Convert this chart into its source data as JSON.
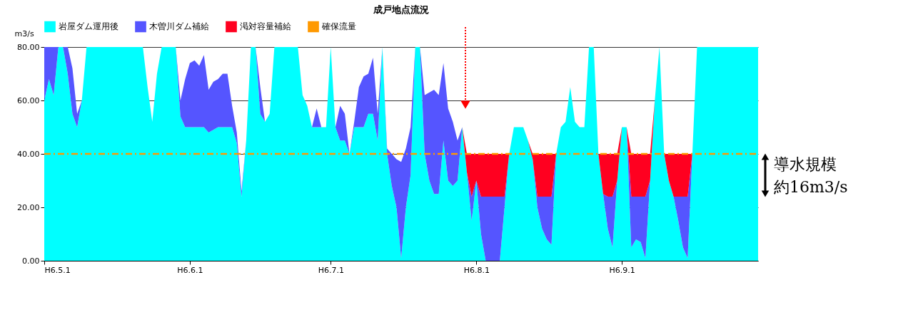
{
  "chart_data": {
    "type": "area",
    "title": "成戸地点流況",
    "ylabel": "m3/s",
    "stacked": true,
    "legend": "top",
    "grid": "y",
    "x": [
      "--05-01",
      "--05-02",
      "--05-03",
      "--05-04",
      "--05-05",
      "--05-06",
      "--05-07",
      "--05-08",
      "--05-09",
      "--05-10",
      "--05-21",
      "--05-22",
      "--05-23",
      "--05-24",
      "--05-25",
      "--05-26",
      "--05-29",
      "--05-30",
      "--05-31",
      "--06-01",
      "--06-02",
      "--06-03",
      "--06-04",
      "--06-05",
      "--06-06",
      "--06-07",
      "--06-08",
      "--06-09",
      "--06-10",
      "--06-11",
      "--06-12",
      "--06-13",
      "--06-14",
      "--06-15",
      "--06-16",
      "--06-17",
      "--06-18",
      "--06-19",
      "--06-24",
      "--06-25",
      "--06-26",
      "--06-27",
      "--06-28",
      "--06-29",
      "--06-30",
      "--07-01",
      "--07-02",
      "--07-03",
      "--07-04",
      "--07-05",
      "--07-06",
      "--07-07",
      "--07-08",
      "--07-09",
      "--07-10",
      "--07-11",
      "--07-12",
      "--07-13",
      "--07-14",
      "--07-15",
      "--07-16",
      "--07-17",
      "--07-18",
      "--07-19",
      "--07-20",
      "--07-21",
      "--07-22",
      "--07-23",
      "--07-24",
      "--07-25",
      "--07-26",
      "--07-27",
      "--07-28",
      "--07-29",
      "--07-30",
      "--07-31",
      "--08-01",
      "--08-02",
      "--08-03",
      "--08-06",
      "--08-07",
      "--08-08",
      "--08-09",
      "--08-11",
      "--08-12",
      "--08-13",
      "--08-14",
      "--08-15",
      "--08-16",
      "--08-17",
      "--08-18",
      "--08-19",
      "--08-20",
      "--08-21",
      "--08-22",
      "--08-23",
      "--08-24",
      "--08-25",
      "--08-26",
      "--08-27",
      "--08-28",
      "--08-29",
      "--08-30",
      "--08-31",
      "--09-01",
      "--09-02",
      "--09-03",
      "--09-04",
      "--09-05",
      "--09-06",
      "--09-07",
      "--09-08",
      "--09-09",
      "--09-10",
      "--09-11",
      "--09-12",
      "--09-13",
      "--09-14",
      "--09-15",
      "--09-16",
      "--09-17",
      "--09-30"
    ],
    "series": [
      {
        "name": "岩屋ダム運用後",
        "color": "#00ffff",
        "values": [
          60,
          68,
          62,
          80,
          80,
          70,
          55,
          50,
          60,
          80,
          80,
          80,
          65,
          52,
          70,
          80,
          80,
          54,
          50,
          50,
          50,
          50,
          50,
          48,
          49,
          50,
          50,
          50,
          50,
          44,
          24,
          45,
          80,
          80,
          55,
          52,
          55,
          80,
          80,
          62,
          58,
          50,
          50,
          50,
          50,
          80,
          50,
          45,
          45,
          40,
          50,
          50,
          50,
          55,
          55,
          45,
          80,
          40,
          28,
          20,
          1,
          20,
          32,
          80,
          80,
          40,
          30,
          25,
          25,
          45,
          30,
          28,
          30,
          50,
          33,
          15,
          30,
          10,
          0,
          0,
          20,
          40,
          50,
          50,
          45,
          38,
          20,
          12,
          8,
          6,
          40,
          50,
          52,
          65,
          52,
          50,
          50,
          80,
          80,
          40,
          25,
          12,
          5,
          30,
          50,
          50,
          5,
          8,
          7,
          1,
          30,
          60,
          80,
          40,
          30,
          24,
          15,
          5,
          1,
          40,
          80,
          80
        ]
      },
      {
        "name": "木曽川ダム補給",
        "color": "#5555ff",
        "values": [
          20,
          12,
          18,
          0,
          0,
          10,
          17,
          5,
          0,
          null,
          null,
          null,
          null,
          null,
          null,
          null,
          0,
          6,
          18,
          24,
          25,
          23,
          27,
          16,
          18,
          18,
          20,
          20,
          8,
          4,
          2,
          0,
          null,
          0,
          10,
          0,
          null,
          null,
          null,
          null,
          null,
          0,
          7,
          0,
          null,
          null,
          0,
          13,
          10,
          0,
          2,
          15,
          19,
          15,
          21,
          10,
          0,
          2,
          12,
          18,
          36,
          22,
          18,
          0,
          0,
          22,
          33,
          39,
          37,
          29,
          27,
          24,
          15,
          0,
          0,
          9,
          0,
          14,
          24,
          24,
          4,
          0,
          null,
          null,
          null,
          0,
          4,
          12,
          16,
          18,
          0,
          null,
          null,
          null,
          null,
          null,
          null,
          null,
          null,
          null,
          0,
          12,
          19,
          0,
          null,
          0,
          19,
          16,
          17,
          23,
          0,
          null,
          null,
          null,
          null,
          0,
          9,
          19,
          23,
          0,
          null,
          null
        ]
      },
      {
        "name": "渇対容量補給",
        "color": "#ff0020",
        "values": [
          null,
          null,
          null,
          null,
          null,
          null,
          null,
          null,
          null,
          null,
          null,
          null,
          null,
          null,
          null,
          null,
          null,
          null,
          null,
          null,
          null,
          null,
          null,
          null,
          null,
          null,
          null,
          null,
          null,
          null,
          null,
          null,
          null,
          null,
          null,
          null,
          null,
          null,
          null,
          null,
          null,
          null,
          null,
          null,
          null,
          null,
          null,
          null,
          null,
          null,
          null,
          null,
          null,
          null,
          null,
          null,
          null,
          null,
          null,
          null,
          null,
          null,
          null,
          null,
          null,
          null,
          null,
          null,
          null,
          null,
          null,
          null,
          null,
          0,
          7,
          16,
          10,
          16,
          16,
          16,
          16,
          0,
          null,
          null,
          0,
          2,
          16,
          16,
          16,
          16,
          0,
          null,
          null,
          null,
          null,
          null,
          null,
          null,
          null,
          0,
          15,
          16,
          16,
          10,
          0,
          0,
          16,
          16,
          16,
          16,
          10,
          0,
          null,
          0,
          10,
          16,
          16,
          16,
          16,
          0,
          null,
          null
        ]
      },
      {
        "name": "確保流量",
        "type": "line",
        "color": "#ff9900",
        "line_style": "dashed",
        "x": [
          "--05-01",
          "--09-30"
        ],
        "values": [
          40,
          40
        ]
      }
    ],
    "xlim": [
      "--05-01",
      "--09-30"
    ],
    "xticks": [
      {
        "value": "--05-01",
        "label": "H6.5.1"
      },
      {
        "value": "--06-01",
        "label": "H6.6.1"
      },
      {
        "value": "--07-01",
        "label": "H6.7.1"
      },
      {
        "value": "--08-01",
        "label": "H6.8.1"
      },
      {
        "value": "--09-01",
        "label": "H6.9.1"
      }
    ],
    "ylim": [
      0,
      80
    ],
    "yticks": [
      {
        "value": 0,
        "label": "0.00"
      },
      {
        "value": 20,
        "label": "20.00"
      },
      {
        "value": 40,
        "label": "40.00"
      },
      {
        "value": 60,
        "label": "60.00"
      },
      {
        "value": 80,
        "label": "80.00"
      }
    ],
    "annotations": [
      "導水規模",
      "約16m3/s"
    ]
  }
}
